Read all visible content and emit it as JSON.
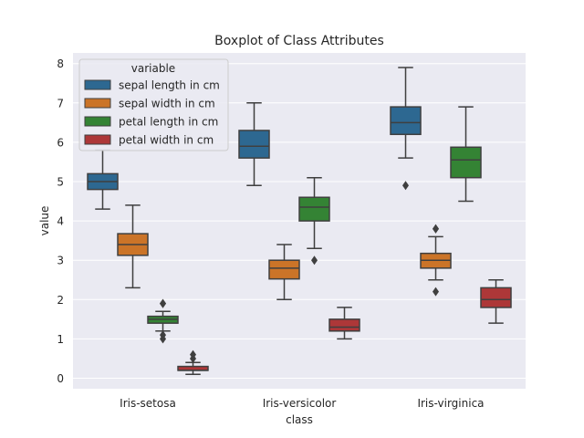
{
  "chart_data": {
    "type": "boxplot",
    "title": "Boxplot of Class Attributes",
    "xlabel": "class",
    "ylabel": "value",
    "ylim": [
      -0.3,
      8.3
    ],
    "yticks": [
      0,
      1,
      2,
      3,
      4,
      5,
      6,
      7,
      8
    ],
    "grid": true,
    "legend_title": "variable",
    "legend_placement": "top-left",
    "categories": [
      "Iris-setosa",
      "Iris-versicolor",
      "Iris-virginica"
    ],
    "series": [
      {
        "name": "sepal length in cm",
        "color": "#3274a1",
        "boxes": [
          {
            "whislo": 4.3,
            "q1": 4.8,
            "med": 5.0,
            "q3": 5.2,
            "whishi": 5.8,
            "fliers": []
          },
          {
            "whislo": 4.9,
            "q1": 5.6,
            "med": 5.9,
            "q3": 6.3,
            "whishi": 7.0,
            "fliers": []
          },
          {
            "whislo": 5.6,
            "q1": 6.2,
            "med": 6.5,
            "q3": 6.9,
            "whishi": 7.9,
            "fliers": [
              4.9
            ]
          }
        ]
      },
      {
        "name": "sepal width in cm",
        "color": "#e1812c",
        "boxes": [
          {
            "whislo": 2.3,
            "q1": 3.125,
            "med": 3.4,
            "q3": 3.675,
            "whishi": 4.4,
            "fliers": []
          },
          {
            "whislo": 2.0,
            "q1": 2.525,
            "med": 2.8,
            "q3": 3.0,
            "whishi": 3.4,
            "fliers": []
          },
          {
            "whislo": 2.5,
            "q1": 2.8,
            "med": 3.0,
            "q3": 3.175,
            "whishi": 3.6,
            "fliers": [
              3.8,
              3.8,
              2.2
            ]
          }
        ]
      },
      {
        "name": "petal length in cm",
        "color": "#3a923a",
        "boxes": [
          {
            "whislo": 1.2,
            "q1": 1.4,
            "med": 1.5,
            "q3": 1.575,
            "whishi": 1.7,
            "fliers": [
              1.9,
              1.9,
              1.0,
              1.1
            ]
          },
          {
            "whislo": 3.3,
            "q1": 4.0,
            "med": 4.35,
            "q3": 4.6,
            "whishi": 5.1,
            "fliers": [
              3.0
            ]
          },
          {
            "whislo": 4.5,
            "q1": 5.1,
            "med": 5.55,
            "q3": 5.875,
            "whishi": 6.9,
            "fliers": []
          }
        ]
      },
      {
        "name": "petal width in cm",
        "color": "#c03d3e",
        "boxes": [
          {
            "whislo": 0.1,
            "q1": 0.2,
            "med": 0.2,
            "q3": 0.3,
            "whishi": 0.4,
            "fliers": [
              0.5,
              0.6
            ]
          },
          {
            "whislo": 1.0,
            "q1": 1.2,
            "med": 1.3,
            "q3": 1.5,
            "whishi": 1.8,
            "fliers": []
          },
          {
            "whislo": 1.4,
            "q1": 1.8,
            "med": 2.0,
            "q3": 2.3,
            "whishi": 2.5,
            "fliers": []
          }
        ]
      }
    ]
  }
}
